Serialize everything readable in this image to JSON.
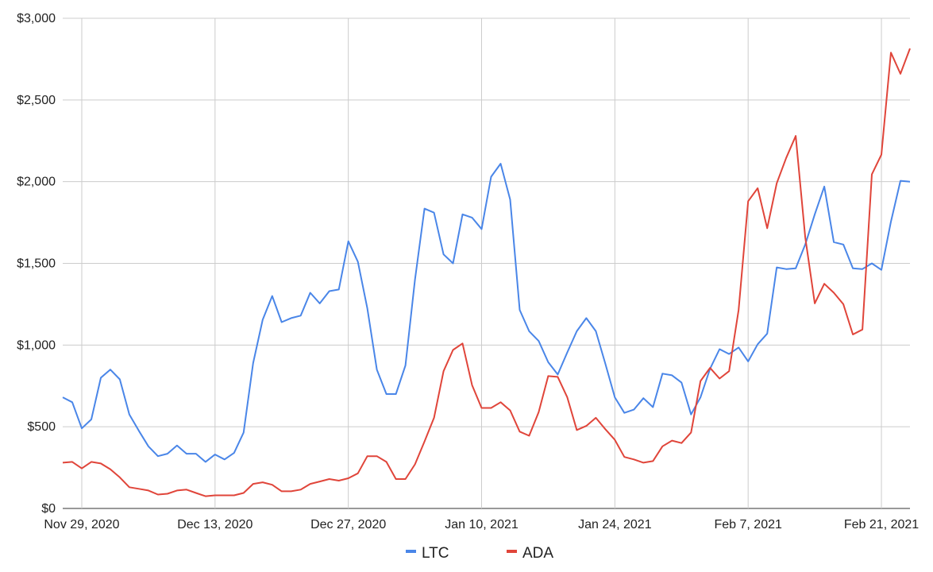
{
  "chart_data": {
    "type": "line",
    "title": "",
    "xlabel": "",
    "ylabel": "",
    "ylim": [
      0,
      3000
    ],
    "y_ticks": [
      {
        "value": 0,
        "label": "$0"
      },
      {
        "value": 500,
        "label": "$500"
      },
      {
        "value": 1000,
        "label": "$1,000"
      },
      {
        "value": 1500,
        "label": "$1,500"
      },
      {
        "value": 2000,
        "label": "$2,000"
      },
      {
        "value": 2500,
        "label": "$2,500"
      },
      {
        "value": 3000,
        "label": "$3,000"
      }
    ],
    "x_start": "2020-11-27",
    "x_ticks": [
      {
        "date": "2020-11-29",
        "label": "Nov 29, 2020"
      },
      {
        "date": "2020-12-13",
        "label": "Dec 13, 2020"
      },
      {
        "date": "2020-12-27",
        "label": "Dec 27, 2020"
      },
      {
        "date": "2021-01-10",
        "label": "Jan 10, 2021"
      },
      {
        "date": "2021-01-24",
        "label": "Jan 24, 2021"
      },
      {
        "date": "2021-02-07",
        "label": "Feb 7, 2021"
      },
      {
        "date": "2021-02-21",
        "label": "Feb 21, 2021"
      }
    ],
    "grid": true,
    "legend_position": "bottom",
    "series": [
      {
        "name": "LTC",
        "color": "#4a86e8",
        "values": [
          680,
          650,
          490,
          545,
          800,
          850,
          790,
          575,
          475,
          380,
          320,
          335,
          385,
          335,
          335,
          285,
          330,
          300,
          340,
          465,
          890,
          1155,
          1300,
          1140,
          1165,
          1180,
          1320,
          1255,
          1330,
          1340,
          1635,
          1510,
          1225,
          850,
          700,
          700,
          875,
          1400,
          1835,
          1810,
          1555,
          1500,
          1800,
          1780,
          1710,
          2030,
          2110,
          1890,
          1215,
          1085,
          1025,
          895,
          820,
          955,
          1085,
          1165,
          1085,
          885,
          680,
          585,
          605,
          675,
          620,
          825,
          815,
          770,
          575,
          680,
          855,
          975,
          945,
          985,
          900,
          1005,
          1070,
          1475,
          1465,
          1470,
          1615,
          1800,
          1970,
          1630,
          1615,
          1470,
          1465,
          1500,
          1460,
          1755,
          2005,
          2000
        ]
      },
      {
        "name": "ADA",
        "color": "#e0453a",
        "values": [
          280,
          285,
          245,
          285,
          275,
          240,
          190,
          130,
          120,
          110,
          85,
          90,
          110,
          115,
          95,
          75,
          80,
          80,
          80,
          95,
          150,
          160,
          145,
          105,
          105,
          115,
          150,
          165,
          180,
          170,
          185,
          215,
          320,
          320,
          285,
          180,
          180,
          270,
          410,
          555,
          840,
          970,
          1010,
          755,
          615,
          615,
          650,
          600,
          470,
          445,
          590,
          810,
          805,
          680,
          480,
          505,
          555,
          485,
          420,
          315,
          300,
          280,
          290,
          380,
          415,
          400,
          465,
          780,
          860,
          795,
          840,
          1215,
          1880,
          1960,
          1715,
          1990,
          2145,
          2280,
          1660,
          1255,
          1375,
          1320,
          1250,
          1065,
          1095,
          2045,
          2165,
          2790,
          2660,
          2815
        ]
      }
    ]
  }
}
